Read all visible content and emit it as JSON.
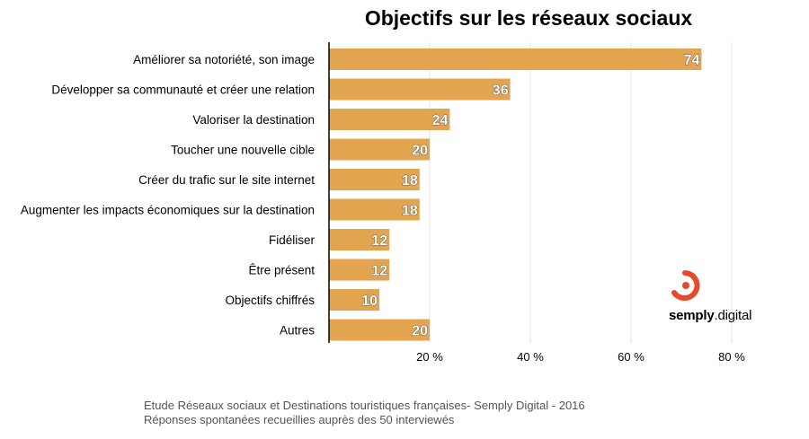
{
  "chart_data": {
    "type": "bar",
    "orientation": "horizontal",
    "title": "Objectifs sur les réseaux sociaux",
    "categories": [
      "Améliorer sa notoriété, son image",
      "Développer sa communauté et créer une relation",
      "Valoriser la destination",
      "Toucher une nouvelle cible",
      "Créer du trafic sur le site internet",
      "Augmenter les impacts économiques sur la destination",
      "Fidéliser",
      "Être présent",
      "Objectifs chiffrés",
      "Autres"
    ],
    "values": [
      74,
      36,
      24,
      20,
      18,
      18,
      12,
      12,
      10,
      20
    ],
    "xlim": [
      0,
      80
    ],
    "x_ticks": [
      "20 %",
      "40 %",
      "60 %",
      "80 %"
    ],
    "x_tick_values": [
      20,
      40,
      60,
      80
    ],
    "grid": true,
    "bar_color": "#E2A44E"
  },
  "footer": {
    "line1": "Etude Réseaux sociaux et Destinations touristiques françaises- Semply Digital - 2016",
    "line2": "Réponses spontanées recueillies auprès des 50 interviewés"
  },
  "brand": {
    "name_bold": "semply",
    "name_rest": ".digital",
    "logo_color": "#E8492A",
    "icon": "semply-logo-icon"
  }
}
